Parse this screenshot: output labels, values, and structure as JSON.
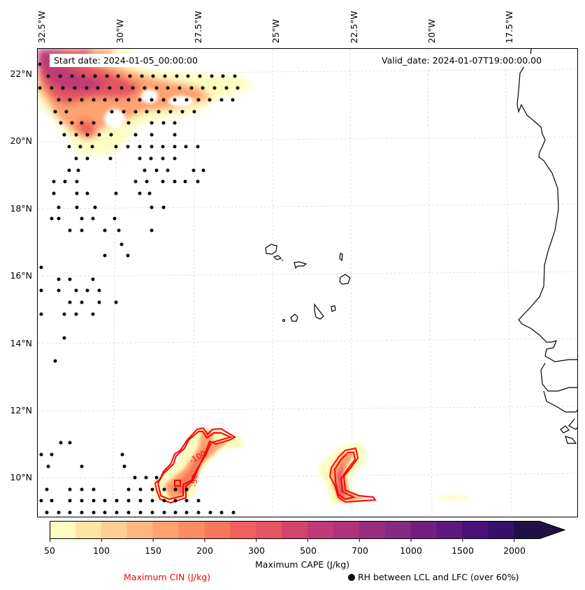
{
  "map": {
    "start_date_text": "Start date: 2024-01-05_00:00:00",
    "valid_date_text": "Valid_date: 2024-01-07T19:00:00.00",
    "longitude_labels": [
      "32.5°W",
      "30°W",
      "27.5°W",
      "25°W",
      "22.5°W",
      "20°W",
      "17.5°W"
    ],
    "latitude_labels": [
      "22°N",
      "20°N",
      "18°N",
      "16°N",
      "14°N",
      "12°N",
      "10°N"
    ],
    "cin_contour_labels": [
      "-100",
      "-50"
    ],
    "cin_contour_color": "#ff0000",
    "extent": {
      "lon_min": -32.6,
      "lon_max": -16.2,
      "lat_min": 8.9,
      "lat_max": 22.8
    }
  },
  "colorbar": {
    "title": "Maximum CAPE (J/kg)",
    "tick_labels": [
      "50",
      "100",
      "150",
      "200",
      "300",
      "500",
      "700",
      "1000",
      "1500",
      "2000"
    ],
    "levels": [
      50,
      75,
      100,
      125,
      150,
      175,
      200,
      250,
      300,
      400,
      500,
      600,
      700,
      850,
      1000,
      1250,
      1500,
      1750,
      2000
    ],
    "colors": [
      "#fcfdbf",
      "#fde4a5",
      "#fecf92",
      "#feb77e",
      "#fea26f",
      "#fd8c63",
      "#f8765c",
      "#f1605d",
      "#e35560",
      "#d3436e",
      "#c03a76",
      "#ad347c",
      "#982d80",
      "#852a81",
      "#721f81",
      "#5f187f",
      "#4a1079",
      "#36106b",
      "#1f1145"
    ],
    "extend": "max"
  },
  "legend": {
    "cin_label": "Maximum CIN (J/kg)",
    "rh_label": "RH between LCL and LFC (over 60%)"
  }
}
